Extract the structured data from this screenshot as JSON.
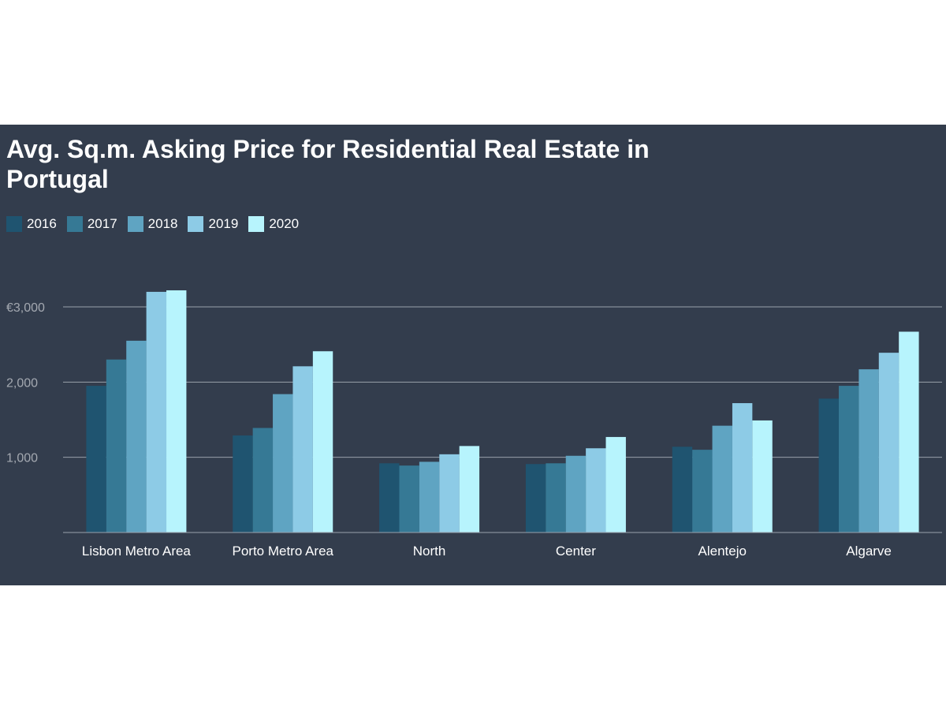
{
  "chart_data": {
    "type": "bar",
    "title": "Avg. Sq.m. Asking Price for Residential Real Estate in Portugal",
    "xlabel": "",
    "ylabel": "",
    "ylim": [
      0,
      3000
    ],
    "yticks": [
      {
        "value": 1000,
        "label": "1,000"
      },
      {
        "value": 2000,
        "label": "2,000"
      },
      {
        "value": 3000,
        "label": "€3,000"
      }
    ],
    "grid": true,
    "legend_position": "top-left",
    "categories": [
      "Lisbon Metro Area",
      "Porto Metro Area",
      "North",
      "Center",
      "Alentejo",
      "Algarve"
    ],
    "series": [
      {
        "name": "2016",
        "color": "#1f5470",
        "values": [
          1950,
          1290,
          920,
          910,
          1140,
          1780
        ]
      },
      {
        "name": "2017",
        "color": "#367995",
        "values": [
          2300,
          1390,
          890,
          920,
          1100,
          1950
        ]
      },
      {
        "name": "2018",
        "color": "#5fa4c2",
        "values": [
          2550,
          1840,
          940,
          1020,
          1420,
          2170
        ]
      },
      {
        "name": "2019",
        "color": "#8dcbe6",
        "values": [
          3200,
          2210,
          1040,
          1120,
          1720,
          2390
        ]
      },
      {
        "name": "2020",
        "color": "#b7f4fd",
        "values": [
          3220,
          2410,
          1150,
          1270,
          1490,
          2670
        ]
      }
    ]
  }
}
